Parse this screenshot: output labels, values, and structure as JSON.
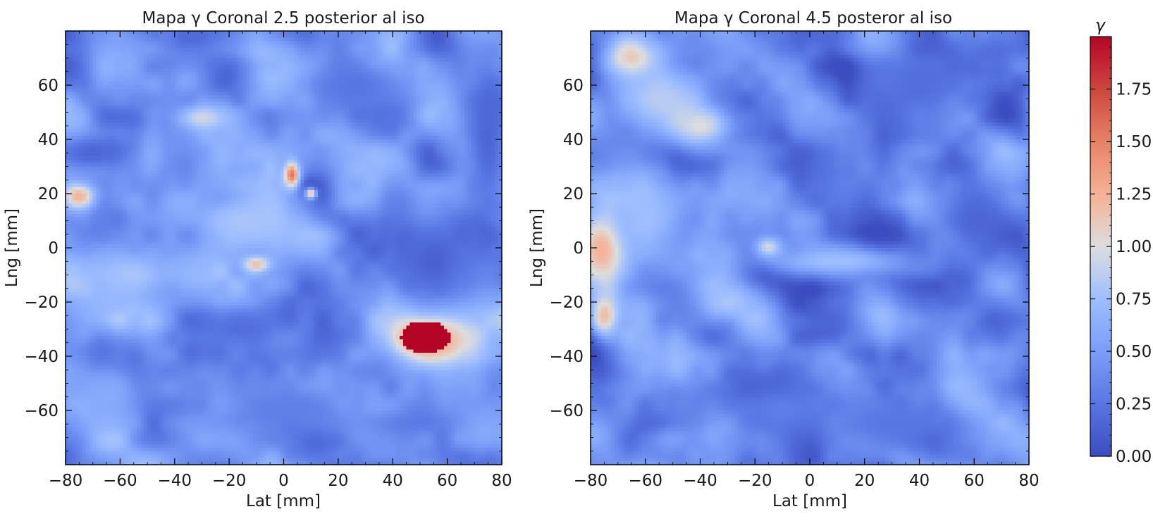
{
  "chart_data": [
    {
      "type": "heatmap",
      "title": "Mapa γ Coronal 2.5 posterior al iso",
      "xlabel": "Lat [mm]",
      "ylabel": "Lng [mm]",
      "xlim": [
        -80,
        80
      ],
      "ylim": [
        -80,
        80
      ],
      "xticks": [
        -80,
        -60,
        -40,
        -20,
        0,
        20,
        40,
        60,
        80
      ],
      "yticks": [
        -60,
        -40,
        -20,
        0,
        20,
        40,
        60
      ],
      "xtick_labels": [
        "−80",
        "−60",
        "−40",
        "−20",
        "0",
        "20",
        "40",
        "60",
        "80"
      ],
      "ytick_labels": [
        "−60",
        "−40",
        "−20",
        "0",
        "20",
        "40",
        "60"
      ],
      "colormap": "coolwarm",
      "value_range": [
        0,
        2
      ],
      "base_value": 0.45,
      "features": [
        {
          "x": 52,
          "y": -33,
          "rx": 9,
          "ry": 6,
          "value": 2.0
        },
        {
          "x": 56,
          "y": -33,
          "rx": 18,
          "ry": 12,
          "value": 1.35
        },
        {
          "x": 3,
          "y": 27,
          "rx": 3,
          "ry": 5,
          "value": 1.55
        },
        {
          "x": 10,
          "y": 20,
          "rx": 2,
          "ry": 2,
          "value": 1.3
        },
        {
          "x": -75,
          "y": 19,
          "rx": 6,
          "ry": 5,
          "value": 1.25
        },
        {
          "x": -10,
          "y": -6,
          "rx": 5,
          "ry": 3,
          "value": 1.2
        },
        {
          "x": -30,
          "y": 48,
          "rx": 10,
          "ry": 5,
          "value": 0.95
        },
        {
          "x": -15,
          "y": 10,
          "rx": 18,
          "ry": 10,
          "value": 0.8
        },
        {
          "x": -55,
          "y": -10,
          "rx": 20,
          "ry": 12,
          "value": 0.8
        },
        {
          "x": 75,
          "y": 40,
          "rx": 10,
          "ry": 35,
          "value": 0.15
        },
        {
          "x": 55,
          "y": -5,
          "rx": 18,
          "ry": 20,
          "value": 0.12
        },
        {
          "x": -70,
          "y": 35,
          "rx": 12,
          "ry": 6,
          "value": 0.15
        },
        {
          "x": 25,
          "y": 60,
          "rx": 20,
          "ry": 10,
          "value": 0.25
        },
        {
          "x": -15,
          "y": -30,
          "rx": 15,
          "ry": 8,
          "value": 0.2
        },
        {
          "x": 0,
          "y": -60,
          "rx": 30,
          "ry": 12,
          "value": 0.3
        },
        {
          "x": -65,
          "y": -55,
          "rx": 12,
          "ry": 15,
          "value": 0.6
        }
      ]
    },
    {
      "type": "heatmap",
      "title": "Mapa γ Coronal 4.5 posteror al iso",
      "xlabel": "Lat [mm]",
      "ylabel": "Lng [mm]",
      "xlim": [
        -80,
        80
      ],
      "ylim": [
        -80,
        80
      ],
      "xticks": [
        -80,
        -60,
        -40,
        -20,
        0,
        20,
        40,
        60,
        80
      ],
      "yticks": [
        -60,
        -40,
        -20,
        0,
        20,
        40,
        60
      ],
      "xtick_labels": [
        "−80",
        "−60",
        "−40",
        "−20",
        "0",
        "20",
        "40",
        "60",
        "80"
      ],
      "ytick_labels": [
        "−60",
        "−40",
        "−20",
        "0",
        "20",
        "40",
        "60"
      ],
      "colormap": "coolwarm",
      "value_range": [
        0,
        2
      ],
      "base_value": 0.35,
      "features": [
        {
          "x": -75,
          "y": 0,
          "rx": 10,
          "ry": 14,
          "value": 1.4
        },
        {
          "x": -75,
          "y": -25,
          "rx": 5,
          "ry": 8,
          "value": 1.2
        },
        {
          "x": -65,
          "y": 70,
          "rx": 10,
          "ry": 8,
          "value": 1.15
        },
        {
          "x": -55,
          "y": 55,
          "rx": 18,
          "ry": 12,
          "value": 0.85
        },
        {
          "x": -40,
          "y": 45,
          "rx": 12,
          "ry": 8,
          "value": 1.0
        },
        {
          "x": -30,
          "y": -20,
          "rx": 12,
          "ry": 8,
          "value": 0.8
        },
        {
          "x": -15,
          "y": 0,
          "rx": 5,
          "ry": 4,
          "value": 1.0
        },
        {
          "x": 10,
          "y": -5,
          "rx": 30,
          "ry": 6,
          "value": 0.75
        },
        {
          "x": -60,
          "y": 10,
          "rx": 15,
          "ry": 20,
          "value": 0.75
        },
        {
          "x": 60,
          "y": 10,
          "rx": 15,
          "ry": 20,
          "value": 0.15
        },
        {
          "x": 40,
          "y": 60,
          "rx": 20,
          "ry": 15,
          "value": 0.2
        },
        {
          "x": 30,
          "y": -65,
          "rx": 25,
          "ry": 10,
          "value": 0.25
        },
        {
          "x": -10,
          "y": -60,
          "rx": 20,
          "ry": 12,
          "value": 0.3
        }
      ]
    }
  ],
  "colorbar": {
    "label": "γ",
    "range": [
      0,
      2
    ],
    "colormap": "coolwarm",
    "ticks": [
      0.0,
      0.25,
      0.5,
      0.75,
      1.0,
      1.25,
      1.5,
      1.75
    ],
    "tick_labels": [
      "0.00",
      "0.25",
      "0.50",
      "0.75",
      "1.00",
      "1.25",
      "1.50",
      "1.75"
    ]
  }
}
